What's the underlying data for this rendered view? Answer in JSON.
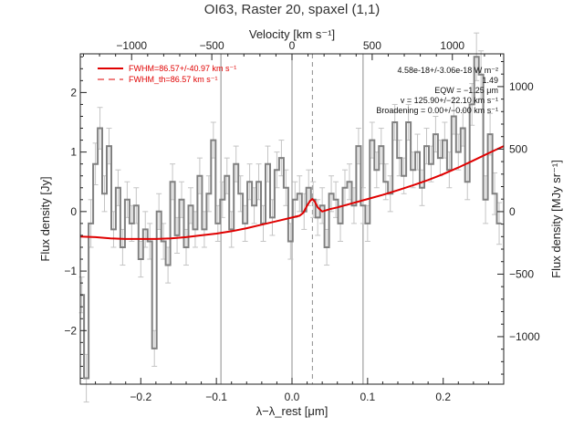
{
  "chart_data": {
    "type": "line",
    "title": "OI63, Raster 20, spaxel (1,1)",
    "xlabel": "λ−λ_rest [μm]",
    "ylabel": "Flux density [Jy]",
    "top_axis_label": "Velocity [km s⁻¹]",
    "right_axis_label": "Flux density [MJy sr⁻¹]",
    "xlim": [
      -0.28,
      0.28
    ],
    "ylim": [
      -2.9,
      2.65
    ],
    "right_ylim": [
      -1380,
      1262
    ],
    "top_xlim": [
      -1320,
      1320
    ],
    "x_ticks": [
      -0.2,
      -0.1,
      0.0,
      0.1,
      0.2
    ],
    "x_tick_labels": [
      "−0.2",
      "−0.1",
      "0.0",
      "0.1",
      "0.2"
    ],
    "y_ticks": [
      -2,
      -1,
      0,
      1,
      2
    ],
    "y_tick_labels": [
      "−2",
      "−1",
      "0",
      "1",
      "2"
    ],
    "top_ticks": [
      -1000,
      -500,
      0,
      500,
      1000
    ],
    "top_tick_labels": [
      "−1000",
      "−500",
      "0",
      "500",
      "1000"
    ],
    "right_ticks": [
      -1000,
      -500,
      0,
      500,
      1000
    ],
    "right_tick_labels": [
      "−1000",
      "−500",
      "0",
      "500",
      "1000"
    ],
    "vertical_lines": [
      -0.094,
      0.0,
      0.094
    ],
    "line_center": 0.027,
    "legend": {
      "position": "top-left",
      "entries": [
        "FWHM=86.57+/-40.97 km s⁻¹",
        "FWHM_th=86.57 km s⁻¹"
      ]
    },
    "annotations": [
      "4.58e-18+/-3.06e-18 W m⁻²",
      "1.49",
      "EQW = −1.25 μm",
      "v = 125.90+/−22.10 km s⁻¹",
      "Broadening = 0.00+/−0.00 km s⁻¹"
    ],
    "series": [
      {
        "color": "#808080",
        "style": "histogram",
        "x": [
          -0.278,
          -0.272,
          -0.266,
          -0.26,
          -0.254,
          -0.248,
          -0.242,
          -0.236,
          -0.23,
          -0.224,
          -0.218,
          -0.212,
          -0.206,
          -0.2,
          -0.194,
          -0.188,
          -0.182,
          -0.176,
          -0.17,
          -0.164,
          -0.158,
          -0.152,
          -0.146,
          -0.14,
          -0.134,
          -0.128,
          -0.122,
          -0.116,
          -0.11,
          -0.104,
          -0.098,
          -0.092,
          -0.086,
          -0.08,
          -0.074,
          -0.068,
          -0.062,
          -0.056,
          -0.05,
          -0.044,
          -0.038,
          -0.032,
          -0.026,
          -0.02,
          -0.014,
          -0.008,
          -0.002,
          0.004,
          0.01,
          0.016,
          0.022,
          0.028,
          0.034,
          0.04,
          0.046,
          0.052,
          0.058,
          0.064,
          0.07,
          0.076,
          0.082,
          0.088,
          0.094,
          0.1,
          0.106,
          0.112,
          0.118,
          0.124,
          0.13,
          0.136,
          0.142,
          0.148,
          0.154,
          0.16,
          0.166,
          0.172,
          0.178,
          0.184,
          0.19,
          0.196,
          0.202,
          0.208,
          0.214,
          0.22,
          0.226,
          0.232,
          0.238,
          0.244,
          0.25,
          0.256,
          0.262,
          0.268,
          0.274
        ],
        "values": [
          -1.4,
          -2.8,
          -0.2,
          0.8,
          1.4,
          0.3,
          1.1,
          -0.3,
          0.4,
          -0.6,
          0.2,
          -0.2,
          0.1,
          -0.8,
          -0.3,
          -0.5,
          -2.3,
          0.0,
          -0.5,
          -0.9,
          0.5,
          -0.4,
          0.2,
          -0.6,
          0.1,
          -0.3,
          0.6,
          -0.3,
          0.3,
          1.2,
          -0.2,
          0.2,
          0.6,
          -0.3,
          0.8,
          0.3,
          -0.2,
          0.5,
          0.1,
          0.5,
          -0.2,
          0.8,
          -0.1,
          0.7,
          0.9,
          0.4,
          -0.5,
          0.2,
          0.3,
          0.0,
          0.4,
          0.2,
          -0.1,
          0.1,
          -0.6,
          0.3,
          0.2,
          -0.2,
          0.4,
          0.5,
          0.1,
          1.1,
          0.1,
          -0.2,
          1.2,
          0.7,
          1.1,
          0.5,
          0.3,
          1.5,
          0.9,
          0.6,
          1.5,
          0.7,
          1.0,
          0.4,
          1.1,
          0.8,
          1.3,
          0.9,
          1.2,
          0.7,
          1.6,
          1.0,
          1.4,
          0.5,
          1.8,
          2.6,
          2.3,
          0.2,
          1.3,
          0.3,
          -0.2
        ],
        "errors": [
          0.3,
          0.4,
          0.4,
          0.35,
          0.35,
          0.3,
          0.3,
          0.3,
          0.3,
          0.3,
          0.3,
          0.3,
          0.3,
          0.3,
          0.3,
          0.3,
          0.3,
          0.3,
          0.3,
          0.3,
          0.3,
          0.3,
          0.3,
          0.3,
          0.3,
          0.3,
          0.3,
          0.3,
          0.3,
          0.3,
          0.3,
          0.3,
          0.3,
          0.3,
          0.3,
          0.3,
          0.3,
          0.3,
          0.3,
          0.3,
          0.3,
          0.3,
          0.3,
          0.3,
          0.3,
          0.3,
          0.3,
          0.3,
          0.3,
          0.3,
          0.3,
          0.3,
          0.3,
          0.3,
          0.3,
          0.3,
          0.3,
          0.3,
          0.3,
          0.3,
          0.3,
          0.3,
          0.3,
          0.3,
          0.3,
          0.3,
          0.3,
          0.3,
          0.3,
          0.3,
          0.3,
          0.3,
          0.3,
          0.3,
          0.3,
          0.3,
          0.3,
          0.3,
          0.3,
          0.3,
          0.3,
          0.3,
          0.3,
          0.3,
          0.3,
          0.3,
          0.35,
          0.4,
          0.4,
          0.4,
          0.35,
          0.35,
          0.35
        ]
      },
      {
        "color": "#e00000",
        "style": "line",
        "x": [
          -0.28,
          -0.26,
          -0.24,
          -0.22,
          -0.2,
          -0.18,
          -0.16,
          -0.14,
          -0.12,
          -0.1,
          -0.08,
          -0.06,
          -0.04,
          -0.02,
          0.0,
          0.01,
          0.015,
          0.02,
          0.024,
          0.027,
          0.03,
          0.034,
          0.04,
          0.05,
          0.06,
          0.08,
          0.1,
          0.12,
          0.14,
          0.16,
          0.18,
          0.2,
          0.22,
          0.24,
          0.26,
          0.28
        ],
        "values": [
          -0.42,
          -0.43,
          -0.45,
          -0.46,
          -0.46,
          -0.46,
          -0.45,
          -0.43,
          -0.4,
          -0.37,
          -0.33,
          -0.28,
          -0.22,
          -0.16,
          -0.1,
          -0.07,
          -0.02,
          0.1,
          0.18,
          0.21,
          0.17,
          0.07,
          0.0,
          0.04,
          0.07,
          0.14,
          0.21,
          0.28,
          0.36,
          0.44,
          0.53,
          0.63,
          0.74,
          0.86,
          0.98,
          1.1
        ]
      }
    ]
  }
}
